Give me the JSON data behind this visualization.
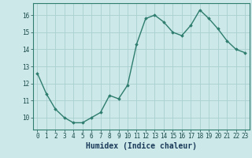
{
  "x": [
    0,
    1,
    2,
    3,
    4,
    5,
    6,
    7,
    8,
    9,
    10,
    11,
    12,
    13,
    14,
    15,
    16,
    17,
    18,
    19,
    20,
    21,
    22,
    23
  ],
  "y": [
    12.6,
    11.4,
    10.5,
    10.0,
    9.7,
    9.7,
    10.0,
    10.3,
    11.3,
    11.1,
    11.9,
    14.3,
    15.8,
    16.0,
    15.6,
    15.0,
    14.8,
    15.4,
    16.3,
    15.8,
    15.2,
    14.5,
    14.0,
    13.8
  ],
  "line_color": "#2e7d6e",
  "marker": "D",
  "marker_size": 1.8,
  "bg_color": "#cce8e8",
  "grid_color": "#aacfcf",
  "xlabel": "Humidex (Indice chaleur)",
  "ylim": [
    9.3,
    16.7
  ],
  "xlim": [
    -0.5,
    23.5
  ],
  "yticks": [
    10,
    11,
    12,
    13,
    14,
    15,
    16
  ],
  "xticks": [
    0,
    1,
    2,
    3,
    4,
    5,
    6,
    7,
    8,
    9,
    10,
    11,
    12,
    13,
    14,
    15,
    16,
    17,
    18,
    19,
    20,
    21,
    22,
    23
  ],
  "tick_fontsize": 5.5,
  "xlabel_fontsize": 7.0,
  "line_width": 1.0,
  "spine_color": "#2e7d6e",
  "tick_color": "#1a4a4a",
  "xlabel_color": "#1a3a5a"
}
